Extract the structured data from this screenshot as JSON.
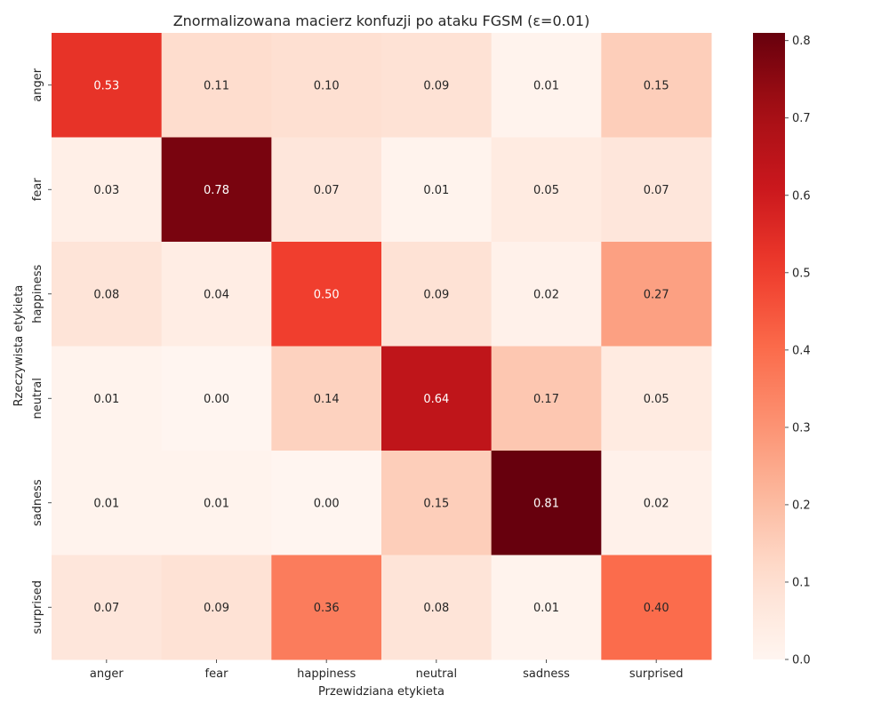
{
  "chart_data": {
    "type": "heatmap",
    "title": "Znormalizowana macierz konfuzji po ataku FGSM (ε=0.01)",
    "xlabel": "Przewidziana etykieta",
    "ylabel": "Rzeczywista etykieta",
    "x_categories": [
      "anger",
      "fear",
      "happiness",
      "neutral",
      "sadness",
      "surprised"
    ],
    "y_categories": [
      "anger",
      "fear",
      "happiness",
      "neutral",
      "sadness",
      "surprised"
    ],
    "values": [
      [
        0.53,
        0.11,
        0.1,
        0.09,
        0.01,
        0.15
      ],
      [
        0.03,
        0.78,
        0.07,
        0.01,
        0.05,
        0.07
      ],
      [
        0.08,
        0.04,
        0.5,
        0.09,
        0.02,
        0.27
      ],
      [
        0.01,
        0.0,
        0.14,
        0.64,
        0.17,
        0.05
      ],
      [
        0.01,
        0.01,
        0.0,
        0.15,
        0.81,
        0.02
      ],
      [
        0.07,
        0.09,
        0.36,
        0.08,
        0.01,
        0.4
      ]
    ],
    "colormap": "Reds",
    "vmin": 0.0,
    "vmax": 0.81,
    "colorbar_ticks": [
      "0.0",
      "0.1",
      "0.2",
      "0.3",
      "0.4",
      "0.5",
      "0.6",
      "0.7",
      "0.8"
    ],
    "colorbar_tick_values": [
      0.0,
      0.1,
      0.2,
      0.3,
      0.4,
      0.5,
      0.6,
      0.7,
      0.8
    ],
    "annotation_format": "2 decimals",
    "colors": {
      "text_dark": "#262626",
      "text_light": "#ffffff"
    }
  }
}
